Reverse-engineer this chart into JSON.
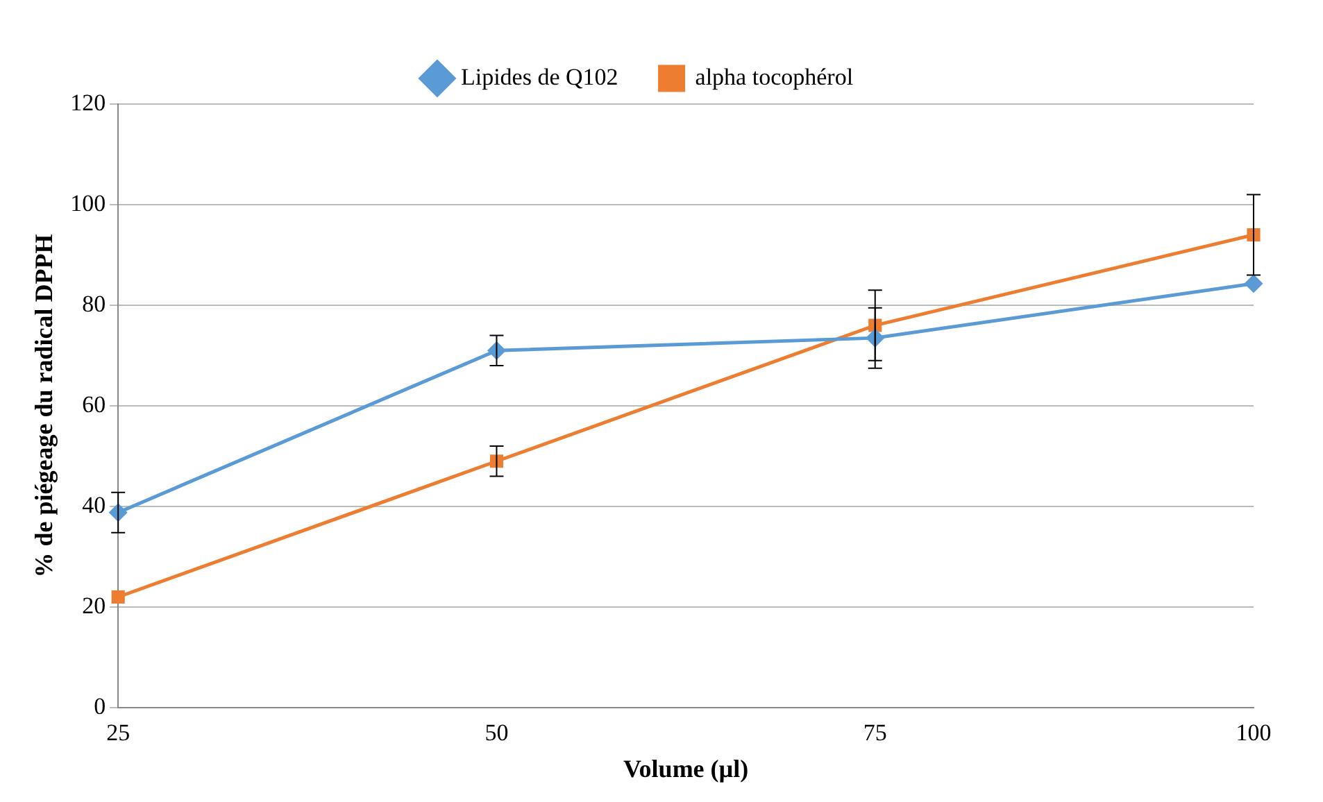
{
  "chart_data": {
    "type": "line",
    "xlabel": "Volume (µl)",
    "ylabel": "% de piégeage du radical DPPH",
    "categories": [
      "25",
      "50",
      "75",
      "100"
    ],
    "series": [
      {
        "name": "Lipides de Q102",
        "color": "#5b9bd5",
        "marker": "diamond",
        "values": [
          38.8,
          71,
          73.5,
          84.3
        ],
        "errors": [
          4,
          3,
          6,
          null
        ]
      },
      {
        "name": "alpha tocophérol",
        "color": "#ed7d31",
        "marker": "square",
        "values": [
          22,
          49,
          76,
          94
        ],
        "errors": [
          null,
          3,
          7,
          8
        ]
      }
    ],
    "ylim": [
      0,
      120
    ],
    "yticks": [
      0,
      20,
      40,
      60,
      80,
      100,
      120
    ],
    "grid": "y",
    "legend": "top"
  }
}
